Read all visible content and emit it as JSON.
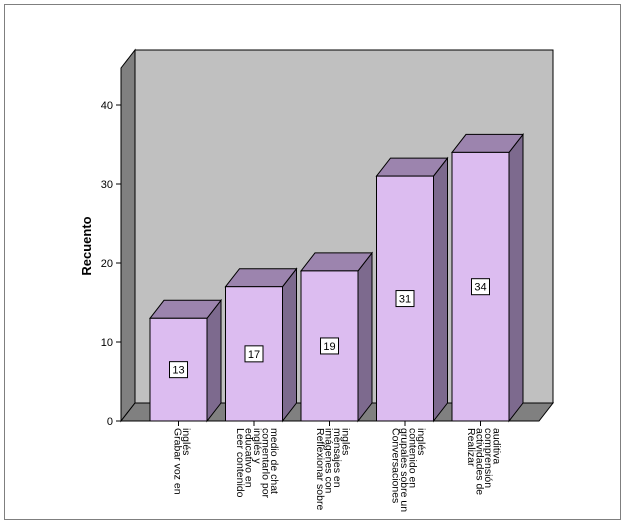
{
  "chart_data": {
    "type": "bar",
    "ylabel": "Recuento",
    "ylim": [
      0,
      40
    ],
    "yticks": [
      "0",
      "10",
      "20",
      "30",
      "40"
    ],
    "categories": [
      [
        "Grabar voz en",
        "inglés"
      ],
      [
        "Leer contenido",
        "educativo en",
        "inglés y",
        "comentarlo por",
        "medio de chat"
      ],
      [
        "Reflexionar sobre",
        "imágenes con",
        "mensajes en",
        "inglés"
      ],
      [
        "Conversaciones",
        "grupales sobre un",
        "contenido en",
        "inglés"
      ],
      [
        "Realizar",
        "actividades de",
        "comprensión",
        "auditiva"
      ]
    ],
    "values": [
      13,
      17,
      19,
      31,
      34
    ],
    "data_labels": [
      "13",
      "17",
      "19",
      "31",
      "34"
    ],
    "grid": false,
    "colors": {
      "bar_front": "#dcbcf0",
      "bar_top": "#9c84ae",
      "bar_side": "#7d6a8e",
      "back_wall": "#c0c0c0",
      "left_wall": "#808080",
      "floor": "#808080"
    }
  }
}
